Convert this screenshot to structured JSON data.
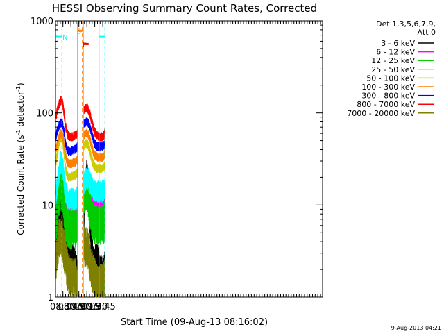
{
  "chart_data": {
    "type": "line",
    "title": "HESSI Observing Summary Count Rates, Corrected",
    "xlabel": "Start Time (09-Aug-13 08:16:02)",
    "ylabel": "Corrected Count Rate (s",
    "ylabel_sup1": "-1",
    "ylabel_mid": " detector",
    "ylabel_sup2": "-1",
    "ylabel_end": ")",
    "x_range_min": [
      496,
      999
    ],
    "y_scale": "log",
    "ylim": [
      1,
      1000
    ],
    "x_ticks": [
      {
        "label": "08:30",
        "min": 510
      },
      {
        "label": "08:45",
        "min": 525
      },
      {
        "label": "09:00",
        "min": 540
      },
      {
        "label": "09:15",
        "min": 555
      },
      {
        "label": "09:30",
        "min": 570
      },
      {
        "label": "09:45",
        "min": 585
      }
    ],
    "y_ticks": [
      {
        "label": "1",
        "value": 1
      },
      {
        "label": "10",
        "value": 10
      },
      {
        "label": "100",
        "value": 100
      },
      {
        "label": "1000",
        "value": 1000
      }
    ],
    "legend": {
      "header1": "Det 1,3,5,6,7,9,",
      "header2": "Att 0",
      "placement": "right"
    },
    "data_gap_min": [
      537.5,
      548.7
    ],
    "series": [
      {
        "name": "3 - 6 keV",
        "color": "#000000",
        "x": [
          497,
          500,
          503,
          506,
          509,
          511,
          513,
          515,
          518,
          521,
          524,
          527,
          530,
          533,
          536,
          537,
          549,
          552,
          555,
          558,
          561,
          564,
          567,
          570,
          573,
          576,
          579,
          582,
          585,
          588,
          589
        ],
        "y": [
          4,
          4.5,
          6,
          7.5,
          7.5,
          6.5,
          4.5,
          3.5,
          3,
          2.5,
          2.3,
          2.4,
          2.2,
          2.1,
          1.7,
          1.6,
          8,
          13,
          20,
          13,
          7.5,
          3.5,
          2.2,
          2.2,
          2.3,
          2.4,
          1.8,
          1.8,
          1.6,
          1.8,
          2.2
        ]
      },
      {
        "name": "6 - 12 keV",
        "color": "#ff00ff",
        "x": [
          497,
          500,
          503,
          506,
          509,
          511,
          513,
          515,
          518,
          521,
          524,
          527,
          530,
          533,
          536,
          537,
          549,
          552,
          555,
          558,
          561,
          564,
          567,
          570,
          573,
          576,
          579,
          582,
          585,
          588,
          589
        ],
        "y": [
          9,
          11,
          13,
          16,
          15,
          13,
          11,
          9.5,
          9,
          9.2,
          9.5,
          9.6,
          9.8,
          9.7,
          10,
          10,
          13,
          16,
          21,
          18,
          15,
          13,
          12,
          11.5,
          11,
          10.5,
          10.2,
          10,
          10,
          10.3,
          11
        ]
      },
      {
        "name": "12 - 25 keV",
        "color": "#00cc00",
        "x": [
          497,
          500,
          503,
          506,
          509,
          511,
          513,
          515,
          518,
          521,
          524,
          527,
          530,
          533,
          536,
          537,
          549,
          552,
          555,
          558,
          561,
          564,
          567,
          570,
          573,
          576,
          579,
          582,
          585,
          588,
          589
        ],
        "y": [
          6.5,
          8.5,
          12,
          15,
          14,
          11,
          8,
          6.2,
          5.8,
          5.6,
          5.5,
          5.5,
          5.6,
          5.6,
          6.5,
          6.8,
          11,
          14,
          15,
          12,
          9,
          7,
          6.5,
          6.2,
          6,
          6,
          6,
          6,
          6,
          6.5,
          7
        ]
      },
      {
        "name": "25 - 50 keV",
        "color": "#00ffff",
        "x": [
          497,
          500,
          503,
          506,
          509,
          511,
          513,
          515,
          518,
          521,
          524,
          527,
          530,
          533,
          536,
          537,
          549,
          552,
          555,
          558,
          561,
          564,
          567,
          570,
          573,
          576,
          579,
          582,
          585,
          588,
          589
        ],
        "y": [
          13,
          17,
          23,
          29,
          27,
          22,
          17,
          14,
          12,
          11.5,
          11.5,
          11.5,
          11.5,
          11.5,
          12,
          12,
          17,
          18.5,
          19.5,
          19,
          17.5,
          16,
          15,
          14.5,
          14,
          14,
          13.8,
          14,
          14,
          14.5,
          15.5
        ]
      },
      {
        "name": "50 - 100 keV",
        "color": "#cccc00",
        "x": [
          497,
          500,
          503,
          506,
          509,
          511,
          513,
          515,
          518,
          521,
          524,
          527,
          530,
          533,
          536,
          537,
          549,
          552,
          555,
          558,
          561,
          564,
          567,
          570,
          573,
          576,
          579,
          582,
          585,
          588,
          589
        ],
        "y": [
          30,
          38,
          48,
          55,
          52,
          42,
          32,
          25,
          21,
          20,
          20,
          20.5,
          21,
          21,
          22,
          22.5,
          43,
          46,
          47,
          44,
          38,
          32,
          28,
          26,
          25,
          25,
          25,
          25,
          25,
          26,
          27
        ]
      },
      {
        "name": "100 - 300 keV",
        "color": "#ff7f00",
        "x": [
          497,
          500,
          503,
          506,
          509,
          511,
          513,
          515,
          518,
          521,
          524,
          527,
          530,
          533,
          536,
          537,
          549,
          552,
          555,
          558,
          561,
          564,
          567,
          570,
          573,
          576,
          579,
          582,
          585,
          588,
          589
        ],
        "y": [
          40,
          48,
          56,
          60,
          58,
          50,
          42,
          34,
          30,
          28,
          28,
          28,
          29,
          29,
          30,
          30.5,
          56,
          60,
          60,
          58,
          52,
          44,
          38,
          35,
          34,
          33,
          33,
          33,
          33,
          35,
          37
        ]
      },
      {
        "name": "300 - 800 keV",
        "color": "#0000ff",
        "x": [
          497,
          500,
          503,
          506,
          509,
          511,
          513,
          515,
          518,
          521,
          524,
          527,
          530,
          533,
          536,
          537,
          549,
          552,
          555,
          558,
          561,
          564,
          567,
          570,
          573,
          576,
          579,
          582,
          585,
          588,
          589
        ],
        "y": [
          56,
          66,
          74,
          78,
          76,
          68,
          57,
          46,
          40,
          38,
          38,
          39,
          40,
          40,
          42,
          43,
          76,
          79,
          80,
          77,
          70,
          60,
          52,
          46,
          44,
          43,
          43,
          43,
          43,
          45,
          48
        ]
      },
      {
        "name": "800 - 7000 keV",
        "color": "#ff0000",
        "x": [
          497,
          500,
          503,
          506,
          509,
          511,
          513,
          515,
          518,
          521,
          524,
          527,
          530,
          533,
          536,
          537,
          549,
          552,
          555,
          558,
          561,
          564,
          567,
          570,
          573,
          576,
          579,
          582,
          585,
          588,
          589
        ],
        "y": [
          92,
          110,
          125,
          138,
          130,
          112,
          90,
          72,
          60,
          56,
          55,
          55,
          56,
          57,
          58,
          59,
          108,
          112,
          114,
          108,
          96,
          82,
          70,
          62,
          58,
          56,
          55,
          55,
          55,
          58,
          62
        ]
      },
      {
        "name": "7000 - 20000 keV",
        "color": "#808000",
        "x": [
          497,
          500,
          503,
          506,
          509,
          511,
          513,
          515,
          518,
          521,
          524,
          527,
          530,
          533,
          536,
          537,
          549,
          552,
          555,
          558,
          561,
          564,
          567,
          570,
          573,
          576,
          579,
          582,
          585,
          588,
          589
        ],
        "y": [
          2.5,
          3.2,
          4.5,
          4.5,
          4.5,
          3.5,
          3,
          2.5,
          2,
          1.8,
          1.7,
          1.7,
          1.6,
          1.6,
          1.3,
          1.2,
          3.5,
          3.5,
          3.5,
          3.2,
          2.5,
          2,
          1.8,
          1.6,
          1.4,
          1.4,
          1.4,
          1.4,
          1.4,
          1.5,
          1.4
        ]
      }
    ],
    "annotations": [
      {
        "label": "N",
        "color": "#00ffff",
        "x1": 497,
        "x2": 508,
        "y": 670,
        "label_x": 509
      },
      {
        "label": "N",
        "color": "#00ffff",
        "x1": 578,
        "x2": 589,
        "y": 670,
        "label_x": null
      },
      {
        "label": "S",
        "color": "#ff7f00",
        "x1": 538,
        "x2": 546.5,
        "y": 780,
        "label_x": 536
      },
      {
        "label": "F",
        "color": "#ff0000",
        "x1": 548.5,
        "x2": 558.5,
        "y": 560,
        "label_x": 547
      }
    ],
    "vertical_markers": [
      {
        "min": 508,
        "color": "#00ffff",
        "style": "dashed"
      },
      {
        "min": 537.5,
        "color": "#ff7f00",
        "style": "solid"
      },
      {
        "min": 546.5,
        "color": "#ff7f00",
        "style": "dashed"
      },
      {
        "min": 548.7,
        "color": "#00ffff",
        "style": "solid"
      },
      {
        "min": 578,
        "color": "#00ffff",
        "style": "solid"
      },
      {
        "min": 589,
        "color": "#00ffff",
        "style": "dashed"
      }
    ],
    "timestamp": "9-Aug-2013 04:21"
  }
}
